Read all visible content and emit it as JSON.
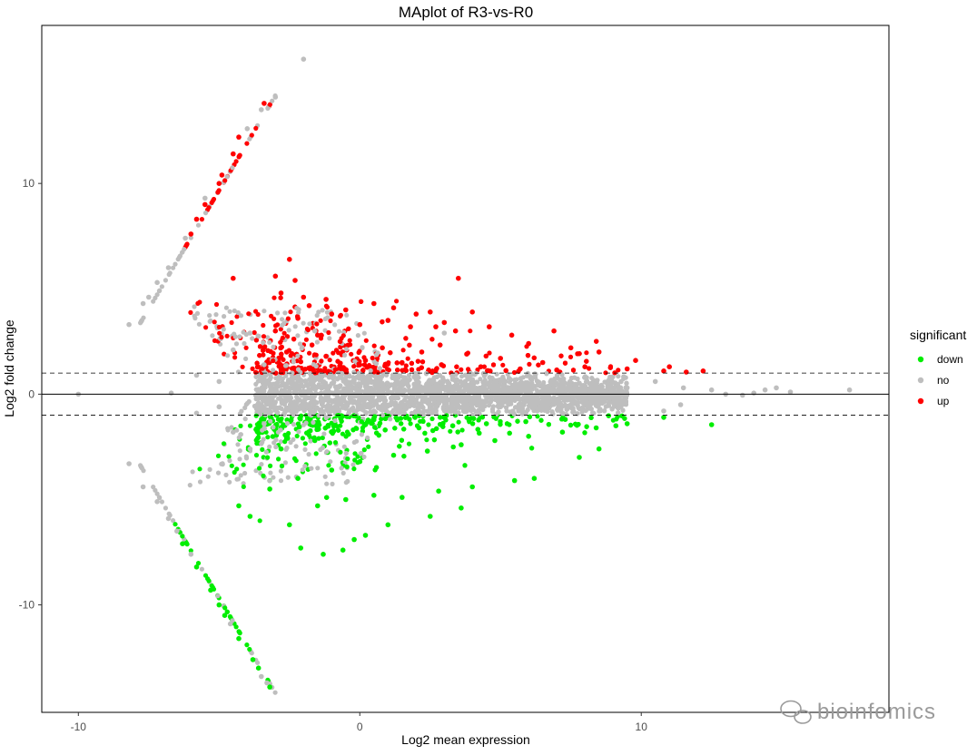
{
  "chart_data": {
    "type": "scatter",
    "title": "MAplot of R3-vs-R0",
    "xlabel": "Log2 mean expression",
    "ylabel": "Log2 fold change",
    "xlim": [
      -11.3,
      18.8
    ],
    "ylim": [
      -15.1,
      17.5
    ],
    "x_ticks": [
      -10,
      0,
      10
    ],
    "y_ticks": [
      -10,
      0,
      10
    ],
    "x_tick_labels": [
      "-10",
      "0",
      "10"
    ],
    "y_tick_labels": [
      "-10",
      "0",
      "10"
    ],
    "reference_lines": {
      "solid_y": 0,
      "dashed_y": [
        1,
        -1
      ]
    },
    "grid": false,
    "legend": {
      "title": "significant",
      "position": "right",
      "entries": [
        {
          "label": "down",
          "color": "#00ee00"
        },
        {
          "label": "no",
          "color": "#bebebe"
        },
        {
          "label": "up",
          "color": "#ff0000"
        }
      ]
    },
    "series": [
      {
        "name": "up",
        "color": "#ff0000",
        "points": [
          [
            -2.5,
            6.4
          ],
          [
            -3.0,
            5.6
          ],
          [
            -2.3,
            5.4
          ],
          [
            -4.5,
            5.5
          ],
          [
            3.5,
            5.5
          ],
          [
            -2.8,
            4.8
          ],
          [
            -2.0,
            4.6
          ],
          [
            -1.2,
            4.5
          ],
          [
            -1.8,
            4.2
          ],
          [
            -0.5,
            4.0
          ],
          [
            0.5,
            4.3
          ],
          [
            1.2,
            4.1
          ],
          [
            2.0,
            3.8
          ],
          [
            2.5,
            3.9
          ],
          [
            3.0,
            3.4
          ],
          [
            4.0,
            3.9
          ],
          [
            -2.2,
            3.6
          ],
          [
            -1.0,
            3.8
          ],
          [
            0.0,
            3.3
          ],
          [
            1.0,
            3.5
          ],
          [
            1.8,
            3.2
          ],
          [
            2.7,
            3.2
          ],
          [
            3.4,
            3.0
          ],
          [
            4.6,
            3.2
          ],
          [
            5.4,
            2.8
          ],
          [
            6.9,
            3.0
          ],
          [
            6.0,
            2.4
          ],
          [
            7.5,
            2.2
          ],
          [
            8.5,
            2.0
          ],
          [
            9.8,
            1.6
          ],
          [
            11.0,
            1.3
          ],
          [
            12.2,
            1.1
          ],
          [
            -3.0,
            3.0
          ],
          [
            -1.5,
            2.8
          ],
          [
            -0.7,
            2.5
          ],
          [
            0.8,
            2.2
          ],
          [
            2.2,
            2.0
          ],
          [
            3.8,
            1.9
          ],
          [
            5.0,
            1.7
          ],
          [
            6.5,
            1.5
          ],
          [
            8.0,
            1.3
          ],
          [
            9.5,
            1.2
          ],
          [
            10.8,
            1.1
          ],
          [
            11.6,
            1.05
          ],
          [
            -2.6,
            2.0
          ],
          [
            -1.2,
            1.8
          ],
          [
            0.2,
            1.6
          ],
          [
            1.5,
            1.5
          ],
          [
            2.9,
            1.4
          ],
          [
            4.3,
            1.3
          ],
          [
            5.7,
            1.2
          ],
          [
            7.0,
            1.15
          ],
          [
            -5.0,
            10.0
          ],
          [
            -5.5,
            9.0
          ],
          [
            -5.8,
            8.3
          ],
          [
            -6.0,
            7.6
          ],
          [
            -4.3,
            12.2
          ],
          [
            -3.4,
            13.8
          ],
          [
            -4.9,
            10.4
          ],
          [
            -4.5,
            11.4
          ]
        ]
      },
      {
        "name": "down",
        "color": "#00ee00",
        "points": [
          [
            -2.1,
            -7.3
          ],
          [
            -1.3,
            -7.6
          ],
          [
            -0.6,
            -7.4
          ],
          [
            -0.2,
            -6.9
          ],
          [
            0.2,
            -6.7
          ],
          [
            1.0,
            -6.2
          ],
          [
            2.5,
            -5.8
          ],
          [
            3.6,
            -5.4
          ],
          [
            -3.9,
            -5.8
          ],
          [
            -4.3,
            -5.3
          ],
          [
            -2.5,
            -6.2
          ],
          [
            -1.5,
            -5.3
          ],
          [
            -0.5,
            -5.0
          ],
          [
            0.5,
            -4.8
          ],
          [
            1.5,
            -4.9
          ],
          [
            2.8,
            -4.6
          ],
          [
            4.0,
            -4.4
          ],
          [
            5.5,
            -4.1
          ],
          [
            6.2,
            -4.0
          ],
          [
            7.8,
            -3.0
          ],
          [
            8.5,
            -2.6
          ],
          [
            9.1,
            -1.5
          ],
          [
            -3.2,
            -4.5
          ],
          [
            -2.2,
            -4.0
          ],
          [
            -1.0,
            -3.6
          ],
          [
            0.0,
            -3.2
          ],
          [
            1.2,
            -2.9
          ],
          [
            2.4,
            -2.7
          ],
          [
            3.6,
            -2.4
          ],
          [
            4.8,
            -2.2
          ],
          [
            6.0,
            -2.0
          ],
          [
            7.2,
            -1.8
          ],
          [
            8.4,
            -1.6
          ],
          [
            9.5,
            -1.4
          ],
          [
            10.8,
            -1.1
          ],
          [
            12.5,
            -1.45
          ],
          [
            -2.8,
            -2.6
          ],
          [
            -1.6,
            -2.2
          ],
          [
            -0.4,
            -1.9
          ],
          [
            0.9,
            -1.7
          ],
          [
            2.1,
            -1.6
          ],
          [
            3.3,
            -1.5
          ],
          [
            4.5,
            -1.4
          ],
          [
            5.9,
            -1.3
          ],
          [
            7.3,
            -1.2
          ],
          [
            -6.3,
            -7.1
          ],
          [
            -5.8,
            -8.2
          ],
          [
            -5.3,
            -9.3
          ],
          [
            -4.8,
            -10.5
          ],
          [
            -4.3,
            -11.6
          ],
          [
            -3.8,
            -12.6
          ],
          [
            -3.2,
            -13.9
          ],
          [
            -3.6,
            -13.0
          ],
          [
            -5.0,
            -10.0
          ]
        ]
      },
      {
        "name": "no",
        "color": "#bebebe",
        "points": [
          [
            -2.0,
            15.9
          ],
          [
            -3.0,
            14.1
          ],
          [
            -3.5,
            13.5
          ],
          [
            -4.0,
            12.6
          ],
          [
            -5.5,
            9.3
          ],
          [
            -6.2,
            7.4
          ],
          [
            -6.8,
            6.0
          ],
          [
            -7.2,
            5.3
          ],
          [
            -7.5,
            4.6
          ],
          [
            -7.7,
            4.3
          ],
          [
            -8.2,
            3.3
          ],
          [
            -8.2,
            -3.3
          ],
          [
            -7.7,
            -4.4
          ],
          [
            -7.2,
            -5.1
          ],
          [
            -6.8,
            -5.9
          ],
          [
            -6.5,
            -6.5
          ],
          [
            -6.0,
            -7.6
          ],
          [
            -4.6,
            -10.9
          ],
          [
            -3.5,
            -13.4
          ],
          [
            -3.3,
            -13.7
          ],
          [
            -10.0,
            0.0
          ],
          [
            -6.7,
            0.05
          ],
          [
            -5.8,
            0.9
          ],
          [
            -5.8,
            -0.9
          ],
          [
            -5.0,
            0.6
          ],
          [
            -5.0,
            -0.6
          ],
          [
            -4.5,
            2.1
          ],
          [
            -4.5,
            -1.8
          ],
          [
            -3.9,
            2.9
          ],
          [
            -3.9,
            -2.6
          ],
          [
            -3.4,
            1.4
          ],
          [
            -3.4,
            -1.4
          ],
          [
            -1.6,
            3.0
          ],
          [
            0.0,
            0.8
          ],
          [
            2.0,
            0.7
          ],
          [
            4.0,
            0.6
          ],
          [
            6.0,
            0.5
          ],
          [
            8.0,
            0.4
          ],
          [
            9.5,
            0.3
          ],
          [
            10.5,
            0.6
          ],
          [
            11.5,
            0.3
          ],
          [
            12.5,
            0.2
          ],
          [
            13.0,
            0.0
          ],
          [
            13.6,
            -0.05
          ],
          [
            14.0,
            0.05
          ],
          [
            14.4,
            0.2
          ],
          [
            14.8,
            0.3
          ],
          [
            15.3,
            0.1
          ],
          [
            17.4,
            0.2
          ],
          [
            10.8,
            -0.8
          ],
          [
            11.4,
            -0.5
          ],
          [
            0.5,
            -0.8
          ],
          [
            2.5,
            -0.7
          ],
          [
            5.0,
            -0.6
          ],
          [
            7.5,
            -0.5
          ],
          [
            9.0,
            -0.4
          ],
          [
            -2.0,
            -0.5
          ],
          [
            -1.0,
            0.5
          ],
          [
            3.0,
            2.9
          ]
        ]
      }
    ]
  },
  "watermark": "bioinfomics"
}
